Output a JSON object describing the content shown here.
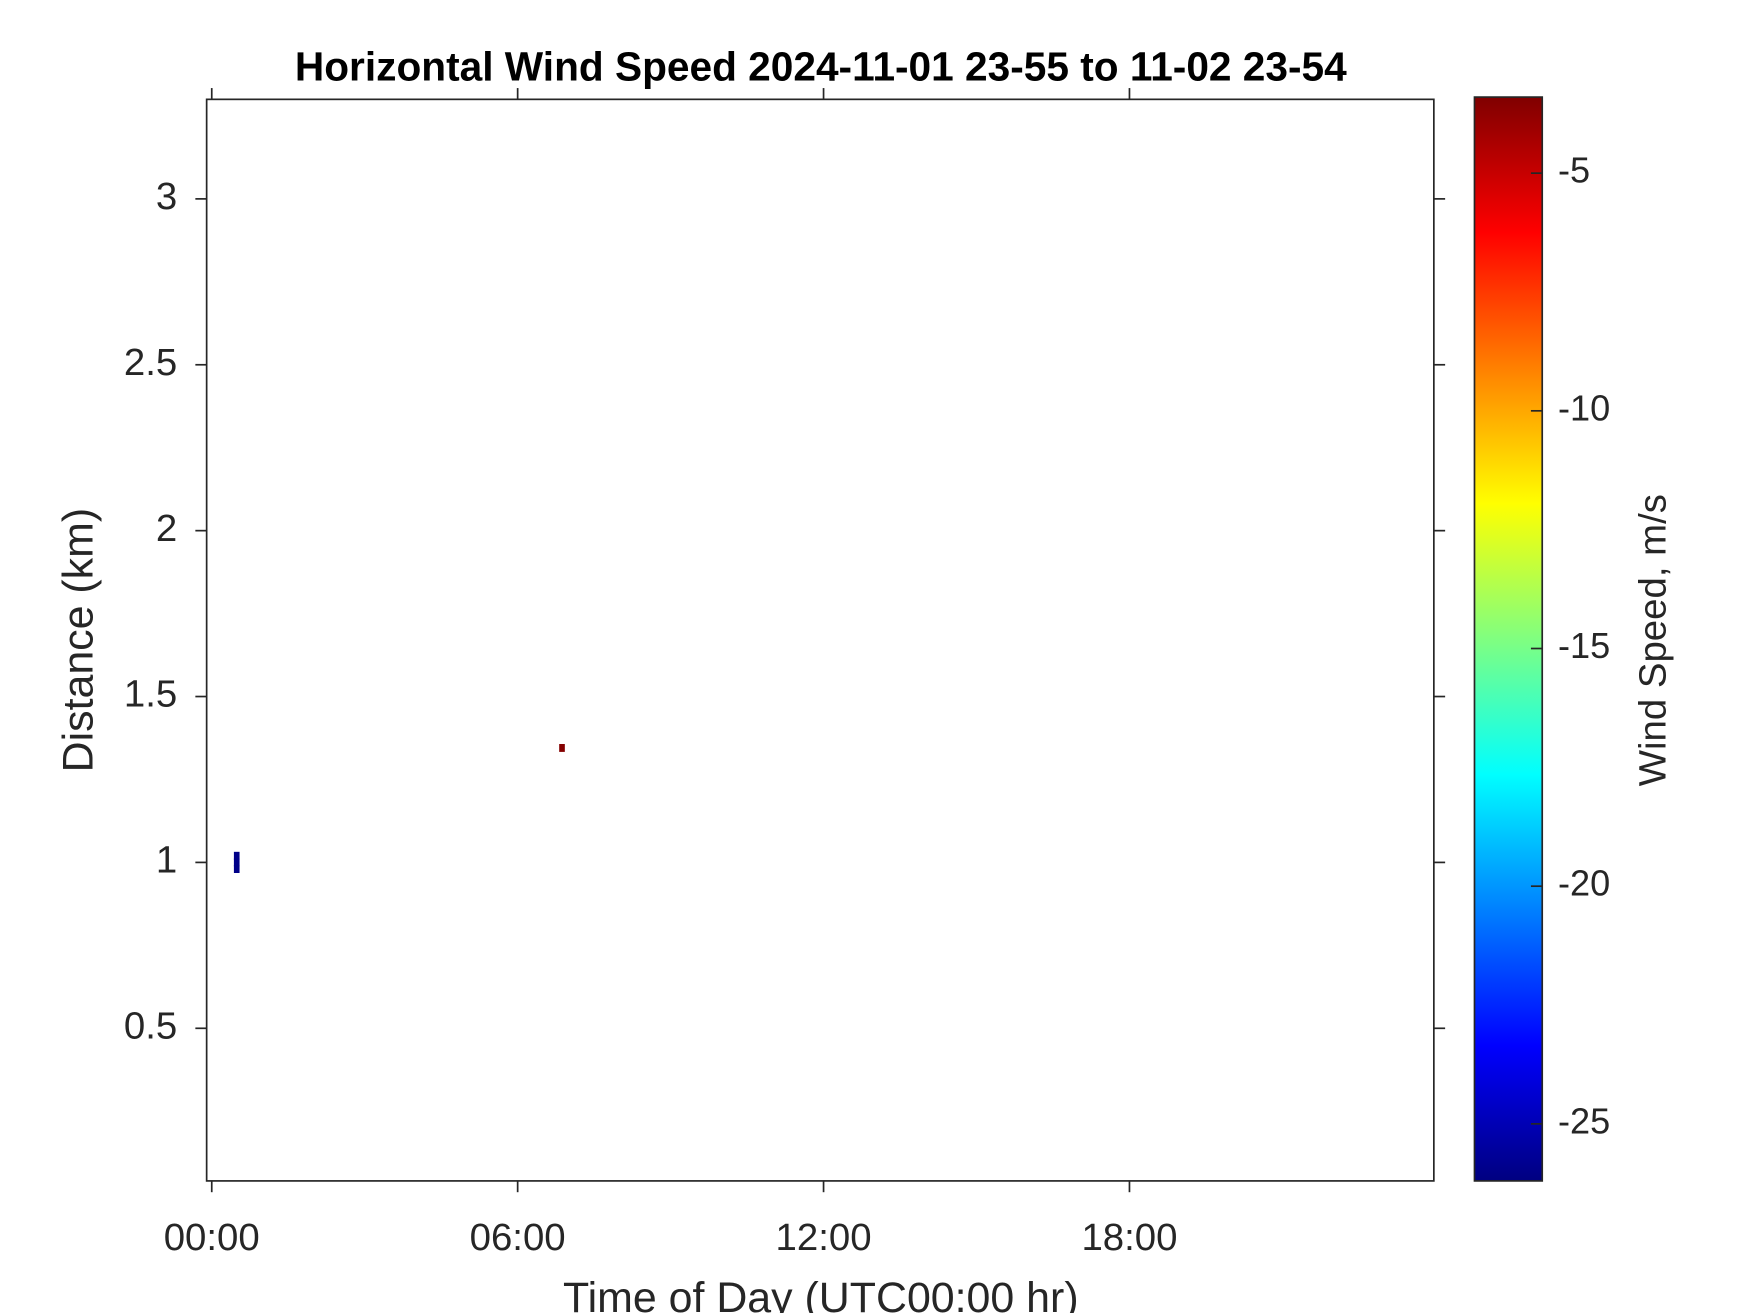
{
  "chart_data": {
    "type": "heatmap",
    "title": "Horizontal Wind Speed 2024-11-01 23-55 to 11-02 23-54",
    "x_label": "Time of Day (UTC00:00 hr)",
    "y_label": "Distance (km)",
    "colorbar_label": "Wind Speed, m/s",
    "colormap": "jet",
    "x": [
      0.49,
      0.49,
      0.49,
      6.87
    ],
    "y": [
      0.98,
      1.0,
      1.02,
      1.345
    ],
    "values": [
      -26,
      -26,
      -26,
      -3.5
    ],
    "xlim": [
      -0.1,
      23.97
    ],
    "ylim": [
      0.04,
      3.3
    ],
    "clim": [
      -26.2,
      -3.4
    ],
    "xticks": [
      {
        "value": 0,
        "label": "00:00"
      },
      {
        "value": 6,
        "label": "06:00"
      },
      {
        "value": 12,
        "label": "12:00"
      },
      {
        "value": 18,
        "label": "18:00"
      }
    ],
    "yticks": [
      0.5,
      1,
      1.5,
      2,
      2.5,
      3
    ],
    "cticks": [
      -25,
      -20,
      -15,
      -10,
      -5
    ]
  }
}
